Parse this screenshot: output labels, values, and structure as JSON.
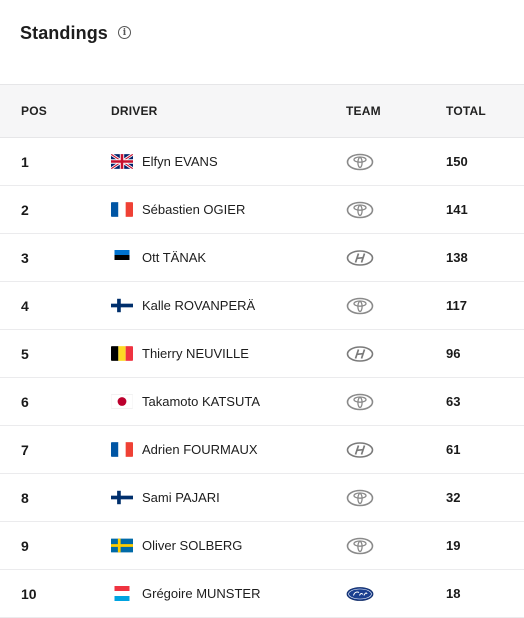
{
  "header": {
    "title": "Standings",
    "info_icon": "info-icon"
  },
  "columns": {
    "pos": "POS",
    "driver": "DRIVER",
    "team": "TEAM",
    "total": "TOTAL"
  },
  "rows": [
    {
      "pos": "1",
      "driver": "Elfyn EVANS",
      "flag": "gb-flag-icon",
      "team": "toyota-logo-icon",
      "total": "150"
    },
    {
      "pos": "2",
      "driver": "Sébastien OGIER",
      "flag": "fr-flag-icon",
      "team": "toyota-logo-icon",
      "total": "141"
    },
    {
      "pos": "3",
      "driver": "Ott TÄNAK",
      "flag": "ee-flag-icon",
      "team": "hyundai-logo-icon",
      "total": "138"
    },
    {
      "pos": "4",
      "driver": "Kalle ROVANPERÄ",
      "flag": "fi-flag-icon",
      "team": "toyota-logo-icon",
      "total": "117"
    },
    {
      "pos": "5",
      "driver": "Thierry NEUVILLE",
      "flag": "be-flag-icon",
      "team": "hyundai-logo-icon",
      "total": "96"
    },
    {
      "pos": "6",
      "driver": "Takamoto KATSUTA",
      "flag": "jp-flag-icon",
      "team": "toyota-logo-icon",
      "total": "63"
    },
    {
      "pos": "7",
      "driver": "Adrien FOURMAUX",
      "flag": "fr-flag-icon",
      "team": "hyundai-logo-icon",
      "total": "61"
    },
    {
      "pos": "8",
      "driver": "Sami PAJARI",
      "flag": "fi-flag-icon",
      "team": "toyota-logo-icon",
      "total": "32"
    },
    {
      "pos": "9",
      "driver": "Oliver SOLBERG",
      "flag": "se-flag-icon",
      "team": "toyota-logo-icon",
      "total": "19"
    },
    {
      "pos": "10",
      "driver": "Grégoire MUNSTER",
      "flag": "lu-flag-icon",
      "team": "ford-logo-icon",
      "total": "18"
    }
  ]
}
